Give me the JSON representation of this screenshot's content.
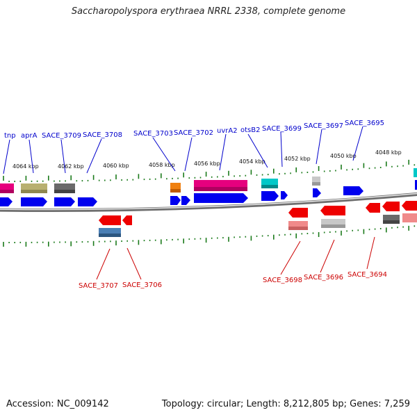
{
  "title": "Saccharopolyspora erythraea NRRL 2338, complete genome",
  "footer": {
    "accession": "Accession: NC_009142",
    "summary": "Topology: circular; Length: 8,212,805 bp; Genes: 7,259"
  },
  "kbp_labels": [
    "4064 kbp",
    "4062 kbp",
    "4060 kbp",
    "4058 kbp",
    "4056 kbp",
    "4054 kbp",
    "4052 kbp",
    "4050 kbp",
    "4048 kbp"
  ],
  "top_gene_labels": [
    "tnp",
    "aprA",
    "SACE_3709",
    "SACE_3708",
    "SACE_3703",
    "SACE_3702",
    "uvrA2",
    "otsB2",
    "SACE_3699",
    "SACE_3697",
    "SACE_3695"
  ],
  "bottom_gene_labels": [
    "SACE_3707",
    "SACE_3706",
    "SACE_3698",
    "SACE_3696",
    "SACE_3694"
  ],
  "colors": {
    "forward_strand": "#0000ee",
    "reverse_strand": "#ee0000",
    "tick": "#1a7a1a",
    "backbone": "#808080"
  }
}
